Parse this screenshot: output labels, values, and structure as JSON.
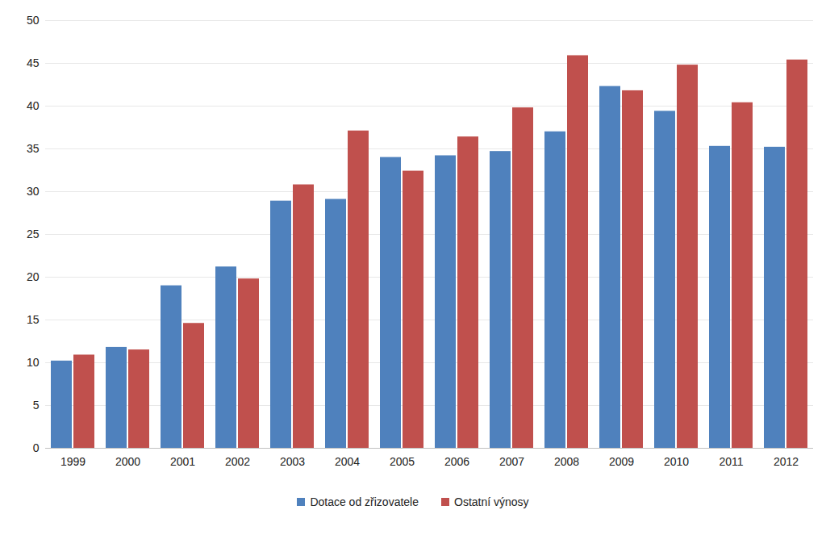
{
  "chart_data": {
    "type": "bar",
    "categories": [
      "1999",
      "2000",
      "2001",
      "2002",
      "2003",
      "2004",
      "2005",
      "2006",
      "2007",
      "2008",
      "2009",
      "2010",
      "2011",
      "2012"
    ],
    "series": [
      {
        "name": "Dotace od zřizovatele",
        "color": "#4f81bd",
        "values": [
          10.2,
          11.8,
          19.0,
          21.2,
          28.9,
          29.1,
          34.0,
          34.2,
          34.7,
          37.0,
          42.3,
          39.4,
          35.3,
          35.2
        ]
      },
      {
        "name": "Ostatní výnosy",
        "color": "#c0504d",
        "values": [
          10.9,
          11.5,
          14.6,
          19.8,
          30.8,
          37.1,
          32.4,
          36.4,
          39.8,
          45.9,
          41.8,
          44.8,
          40.4,
          45.4
        ]
      }
    ],
    "ylim": [
      0,
      50
    ],
    "yticks": [
      0,
      5,
      10,
      15,
      20,
      25,
      30,
      35,
      40,
      45,
      50
    ],
    "grid": true,
    "legend": "bottom"
  }
}
